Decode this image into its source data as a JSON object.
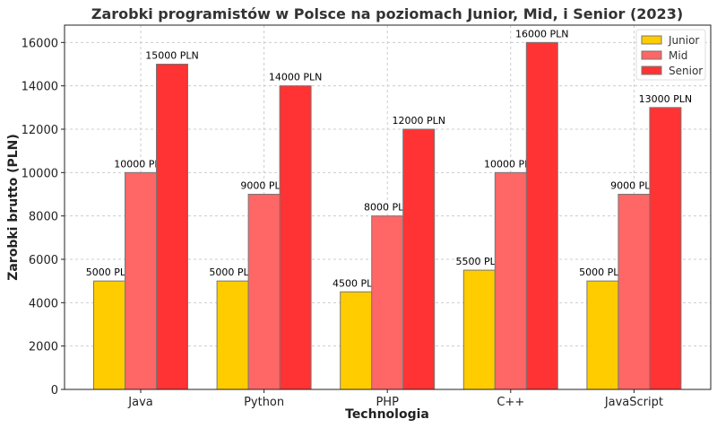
{
  "chart_data": {
    "type": "bar",
    "title": "Zarobki programistów w Polsce na poziomach Junior, Mid, i Senior (2023)",
    "xlabel": "Technologia",
    "ylabel": "Zarobki brutto (PLN)",
    "categories": [
      "Java",
      "Python",
      "PHP",
      "C++",
      "JavaScript"
    ],
    "series": [
      {
        "name": "Junior",
        "color": "#ffcc00",
        "values": [
          5000,
          5000,
          4500,
          5500,
          5000
        ]
      },
      {
        "name": "Mid",
        "color": "#ff6666",
        "values": [
          10000,
          9000,
          8000,
          10000,
          9000
        ]
      },
      {
        "name": "Senior",
        "color": "#ff3333",
        "values": [
          15000,
          14000,
          12000,
          16000,
          13000
        ]
      }
    ],
    "label_suffix": " PLN",
    "ylim": [
      0,
      16800
    ],
    "yticks": [
      0,
      2000,
      4000,
      6000,
      8000,
      10000,
      12000,
      14000,
      16000
    ],
    "grid": true,
    "legend": "top-right"
  }
}
